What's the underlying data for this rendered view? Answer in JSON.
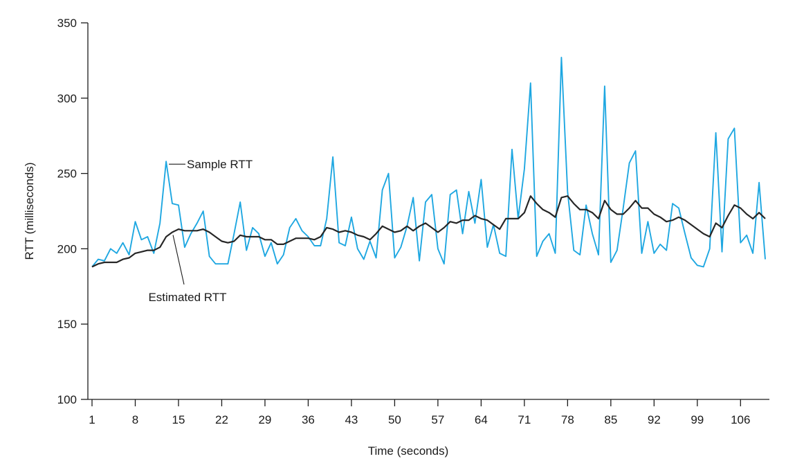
{
  "chart_data": {
    "type": "line",
    "xlabel": "Time (seconds)",
    "ylabel": "RTT (milliseconds)",
    "xlim": [
      1,
      110
    ],
    "ylim": [
      100,
      350
    ],
    "x_ticks": [
      "1",
      "8",
      "15",
      "22",
      "29",
      "36",
      "43",
      "50",
      "57",
      "64",
      "71",
      "78",
      "85",
      "92",
      "99",
      "106"
    ],
    "y_ticks": [
      "100",
      "150",
      "200",
      "250",
      "300",
      "350"
    ],
    "grid": false,
    "x_start": 1,
    "x_step": 1,
    "series": [
      {
        "name": "Sample RTT",
        "color": "#1ea7e1",
        "values": [
          188,
          193,
          192,
          200,
          197,
          204,
          196,
          218,
          206,
          208,
          197,
          217,
          258,
          230,
          229,
          201,
          210,
          217,
          225,
          195,
          190,
          190,
          190,
          210,
          231,
          199,
          214,
          210,
          195,
          204,
          190,
          196,
          214,
          220,
          212,
          208,
          202,
          202,
          220,
          261,
          204,
          202,
          221,
          200,
          193,
          205,
          194,
          239,
          250,
          194,
          201,
          215,
          234,
          192,
          231,
          236,
          200,
          190,
          236,
          239,
          210,
          238,
          217,
          246,
          201,
          216,
          197,
          195,
          266,
          220,
          253,
          310,
          195,
          205,
          210,
          197,
          327,
          238,
          199,
          196,
          229,
          210,
          196,
          308,
          191,
          199,
          227,
          257,
          265,
          197,
          218,
          197,
          203,
          199,
          230,
          227,
          210,
          194,
          189,
          188,
          200,
          277,
          198,
          273,
          280,
          204,
          209,
          197,
          244,
          193
        ]
      },
      {
        "name": "Estimated RTT",
        "color": "#262626",
        "values": [
          188,
          190,
          191,
          191,
          191,
          193,
          194,
          197,
          198,
          199,
          199,
          201,
          208,
          211,
          213,
          212,
          212,
          212,
          213,
          211,
          208,
          205,
          204,
          205,
          209,
          208,
          208,
          208,
          206,
          206,
          203,
          203,
          205,
          207,
          207,
          207,
          206,
          208,
          214,
          213,
          211,
          212,
          211,
          209,
          208,
          206,
          210,
          215,
          213,
          211,
          212,
          215,
          212,
          215,
          217,
          214,
          211,
          214,
          218,
          217,
          219,
          219,
          222,
          220,
          219,
          216,
          213,
          220,
          220,
          220,
          224,
          235,
          230,
          226,
          224,
          221,
          234,
          235,
          230,
          226,
          226,
          224,
          220,
          232,
          226,
          223,
          223,
          227,
          232,
          227,
          227,
          223,
          221,
          218,
          219,
          221,
          219,
          216,
          213,
          210,
          208,
          217,
          214,
          222,
          229,
          227,
          223,
          220,
          224,
          220
        ]
      }
    ],
    "annotations": [
      {
        "text": "Sample RTT",
        "target_series": "Sample RTT"
      },
      {
        "text": "Estimated RTT",
        "target_series": "Estimated RTT"
      }
    ]
  }
}
